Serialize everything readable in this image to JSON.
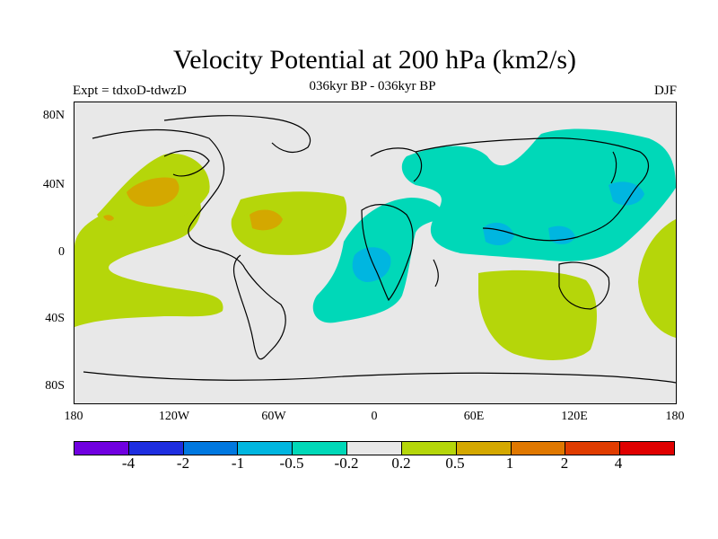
{
  "title": "Velocity Potential at 200 hPa (km2/s)",
  "subtitle": "036kyr BP - 036kyr BP",
  "experiment_label": "Expt = tdxoD-tdwzD",
  "season": "DJF",
  "map": {
    "projection": "cylindrical equidistant",
    "lon_range": [
      -180,
      180
    ],
    "lat_range": [
      -90,
      90
    ],
    "background_color": "#e8e8e8",
    "y_tick_labels": [
      "80N",
      "40N",
      "0",
      "40S",
      "80S"
    ],
    "x_tick_labels": [
      "180",
      "120W",
      "60W",
      "0",
      "60E",
      "120E",
      "180"
    ],
    "shaded_regions": [
      {
        "name": "pacific-positive-west",
        "level": "0.2 to 0.5",
        "color": "#b5d60a"
      },
      {
        "name": "north-america-positive",
        "level": "0.2 to 0.5",
        "color": "#b5d60a"
      },
      {
        "name": "north-america-core",
        "level": "0.5 to 1",
        "color": "#d4a800"
      },
      {
        "name": "caribbean-positive",
        "level": "0.2 to 0.5",
        "color": "#b5d60a"
      },
      {
        "name": "caribbean-core",
        "level": "0.5 to 1",
        "color": "#d4a800"
      },
      {
        "name": "australia-positive",
        "level": "0.2 to 0.5",
        "color": "#b5d60a"
      },
      {
        "name": "atlantic-africa-negative",
        "level": "-0.5 to -0.2",
        "color": "#00d8b8"
      },
      {
        "name": "africa-core",
        "level": "-1 to -0.5",
        "color": "#00b6e0"
      },
      {
        "name": "asia-negative",
        "level": "-0.5 to -0.2",
        "color": "#00d8b8"
      },
      {
        "name": "asia-core",
        "level": "-1 to -0.5",
        "color": "#00b6e0"
      }
    ]
  },
  "colorbar": {
    "colors": [
      "#7000e0",
      "#1e2ee0",
      "#0078e0",
      "#00b6e0",
      "#00d8b8",
      "#e8e8e8",
      "#b5d60a",
      "#d4a800",
      "#e07800",
      "#e03c00",
      "#e00000"
    ],
    "labels": [
      "-4",
      "-2",
      "-1",
      "-0.5",
      "-0.2",
      "0.2",
      "0.5",
      "1",
      "2",
      "4"
    ]
  }
}
